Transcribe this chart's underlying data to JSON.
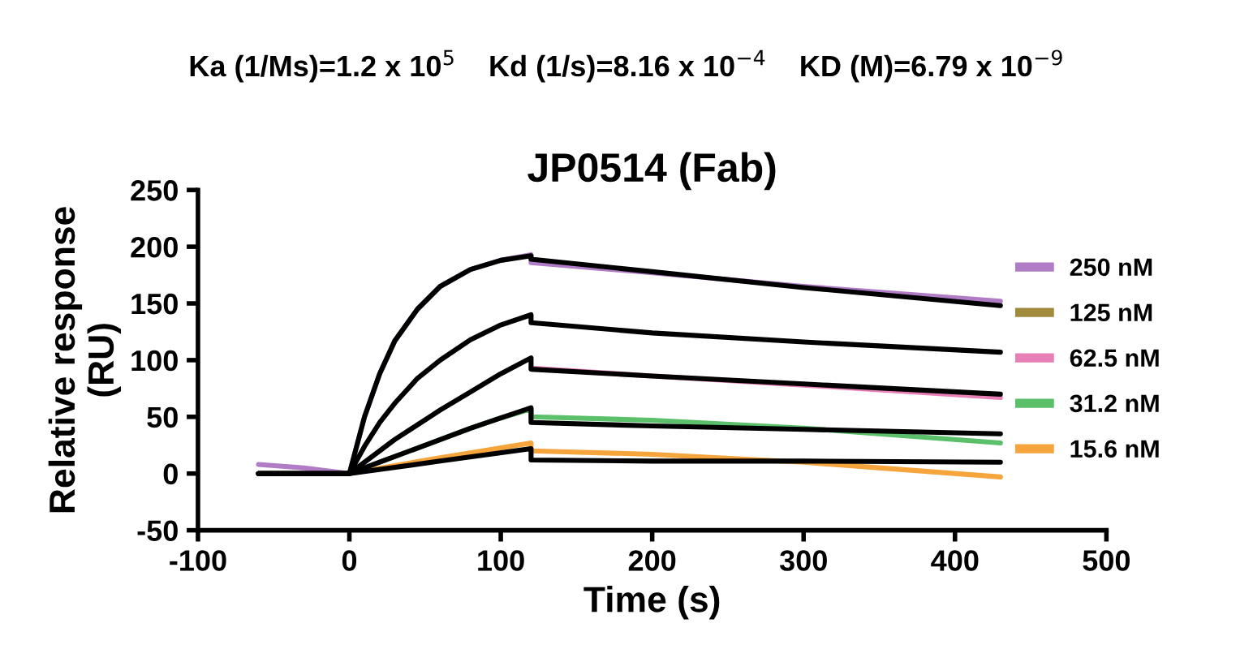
{
  "chart_data": {
    "type": "line",
    "title": "JP0514 (Fab)",
    "xlabel": "Time (s)",
    "ylabel": "Relative response\n(RU)",
    "annotations": [
      "Ka (1/Ms)=1.2 x 10$^{5}$    Kd (1/s)=8.16 x 10$^{−4}$    KD (M)=6.79 x 10$^{−9}$"
    ],
    "xlim": [
      -100,
      500
    ],
    "xticks": [
      -100,
      0,
      100,
      200,
      300,
      400,
      500
    ],
    "ylim": [
      -50,
      250
    ],
    "yticks": [
      -50,
      0,
      50,
      100,
      150,
      200,
      250
    ],
    "grid": false,
    "legend": "right",
    "marker": "none",
    "line_style": "solid",
    "series": [
      {
        "name": "250 nM",
        "color": "#b07cc6",
        "x": [
          -60,
          -30,
          0,
          10,
          20,
          30,
          45,
          60,
          80,
          100,
          120,
          120,
          200,
          300,
          430
        ],
        "values": [
          8,
          5,
          0,
          50,
          88,
          117,
          145,
          165,
          180,
          188,
          193,
          186,
          177,
          165,
          152
        ]
      },
      {
        "name": "125 nM",
        "color": "#a08a3c"
      },
      {
        "name": "62.5 nM",
        "color": "#e87fb7",
        "x": [
          120,
          200,
          300,
          430
        ],
        "values": [
          93,
          86,
          78,
          67
        ]
      },
      {
        "name": "31.2 nM",
        "color": "#5cc06a",
        "x": [
          20,
          40,
          60,
          80,
          100,
          120,
          120,
          200,
          300,
          430
        ],
        "values": [
          10,
          20,
          30,
          40,
          49,
          57,
          50,
          47,
          40,
          27
        ]
      },
      {
        "name": "15.6 nM",
        "color": "#f5a53c",
        "x": [
          -60,
          0,
          60,
          120,
          120,
          200,
          300,
          430
        ],
        "values": [
          0,
          0,
          14,
          27,
          20,
          17,
          10,
          -3
        ]
      },
      {
        "color": "#000000",
        "x": [
          -60,
          0,
          10,
          20,
          30,
          45,
          60,
          80,
          100,
          120,
          120,
          200,
          300,
          430
        ],
        "values": [
          0,
          0,
          50,
          88,
          117,
          145,
          165,
          180,
          188,
          192,
          189,
          178,
          164,
          148
        ]
      },
      {
        "color": "#000000",
        "x": [
          -60,
          0,
          10,
          20,
          30,
          45,
          60,
          80,
          100,
          120,
          120,
          200,
          300,
          430
        ],
        "values": [
          0,
          0,
          24,
          45,
          62,
          84,
          100,
          118,
          131,
          140,
          133,
          124,
          116,
          107
        ]
      },
      {
        "color": "#000000",
        "x": [
          -60,
          0,
          10,
          20,
          30,
          45,
          60,
          80,
          100,
          120,
          120,
          200,
          300,
          430
        ],
        "values": [
          0,
          0,
          10,
          20,
          30,
          43,
          56,
          72,
          88,
          102,
          92,
          86,
          79,
          70
        ]
      },
      {
        "color": "#000000",
        "x": [
          -60,
          0,
          20,
          40,
          60,
          80,
          100,
          120,
          120,
          200,
          300,
          430
        ],
        "values": [
          0,
          0,
          10,
          20,
          30,
          40,
          49,
          58,
          45,
          42,
          39,
          35
        ]
      },
      {
        "color": "#000000",
        "x": [
          -60,
          0,
          60,
          120,
          120,
          200,
          300,
          430
        ],
        "values": [
          0,
          0,
          11,
          22,
          12,
          11,
          11,
          10
        ]
      }
    ]
  }
}
